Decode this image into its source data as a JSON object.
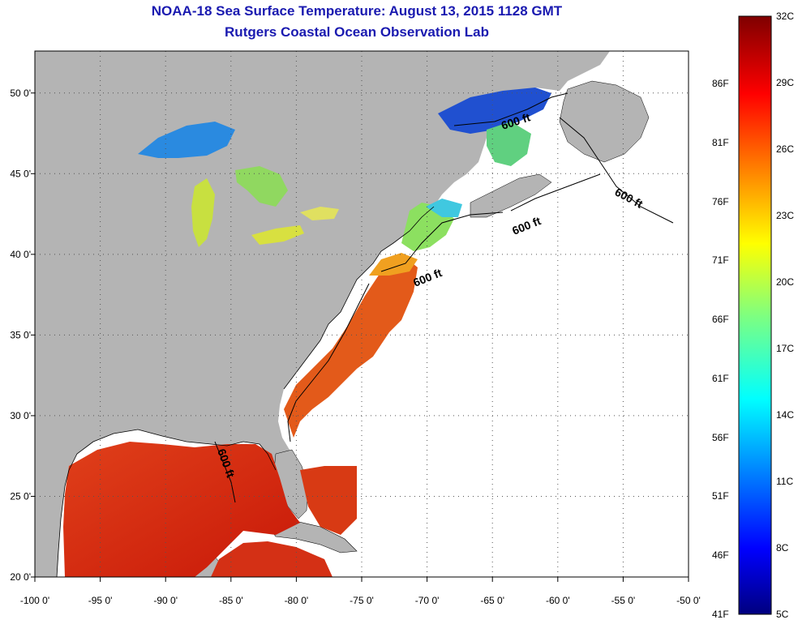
{
  "title_line1": "NOAA-18 Sea Surface Temperature:  August 13, 2015 1128 GMT",
  "title_line2": "Rutgers Coastal Ocean Observation Lab",
  "lon_ticks": [
    "-100 0'",
    "-95 0'",
    "-90 0'",
    "-85 0'",
    "-80 0'",
    "-75 0'",
    "-70 0'",
    "-65 0'",
    "-60 0'",
    "-55 0'",
    "-50 0'"
  ],
  "lat_ticks": [
    "50 0'",
    "45 0'",
    "40 0'",
    "35 0'",
    "30 0'",
    "25 0'",
    "20 0'"
  ],
  "contour_labels": [
    "600 ft",
    "600 ft",
    "600 ft",
    "600 ft",
    "600 ft"
  ],
  "colorbar": {
    "celsius": [
      "32C",
      "29C",
      "26C",
      "23C",
      "20C",
      "17C",
      "14C",
      "11C",
      "8C",
      "5C"
    ],
    "fahrenheit": [
      "86F",
      "81F",
      "76F",
      "71F",
      "66F",
      "61F",
      "56F",
      "51F",
      "46F",
      "41F"
    ]
  },
  "colors": {
    "land": "#b4b4b4",
    "title": "#1a1ab0",
    "warm": "#d62a10",
    "cold": "#1020c0"
  }
}
